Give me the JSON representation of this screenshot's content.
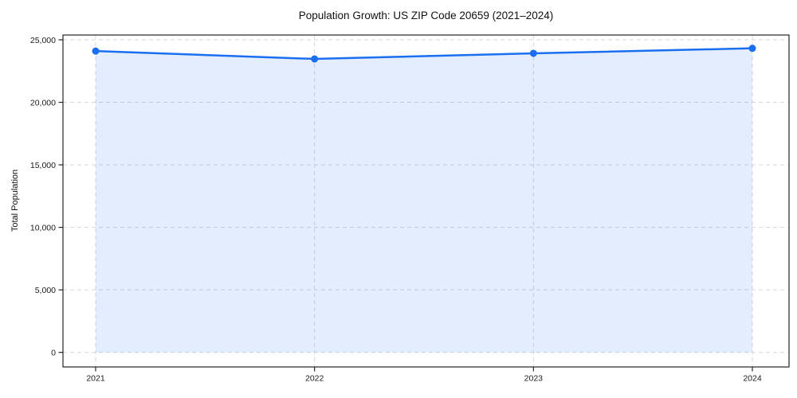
{
  "chart_data": {
    "type": "area",
    "title": "Population Growth: US ZIP Code 20659 (2021–2024)",
    "xlabel": "",
    "ylabel": "Total Population",
    "categories": [
      "2021",
      "2022",
      "2023",
      "2024"
    ],
    "series": [
      {
        "name": "Total Population",
        "values": [
          24100,
          23470,
          23920,
          24320
        ]
      }
    ],
    "ylim": [
      0,
      25000
    ],
    "yticks": [
      0,
      5000,
      10000,
      15000,
      20000,
      25000
    ],
    "ytick_labels": [
      "0",
      "5,000",
      "10,000",
      "15,000",
      "20,000",
      "25,000"
    ],
    "grid": true,
    "grid_style": "dashed",
    "legend": "none",
    "colors": {
      "line": "#1a6ff0",
      "marker": "#1a6ff0",
      "area_fill": "#1a6ff0",
      "area_opacity": 0.12,
      "grid": "#d6d6d6",
      "axis": "#262626",
      "text": "#1a1a1a",
      "background": "#ffffff"
    }
  }
}
